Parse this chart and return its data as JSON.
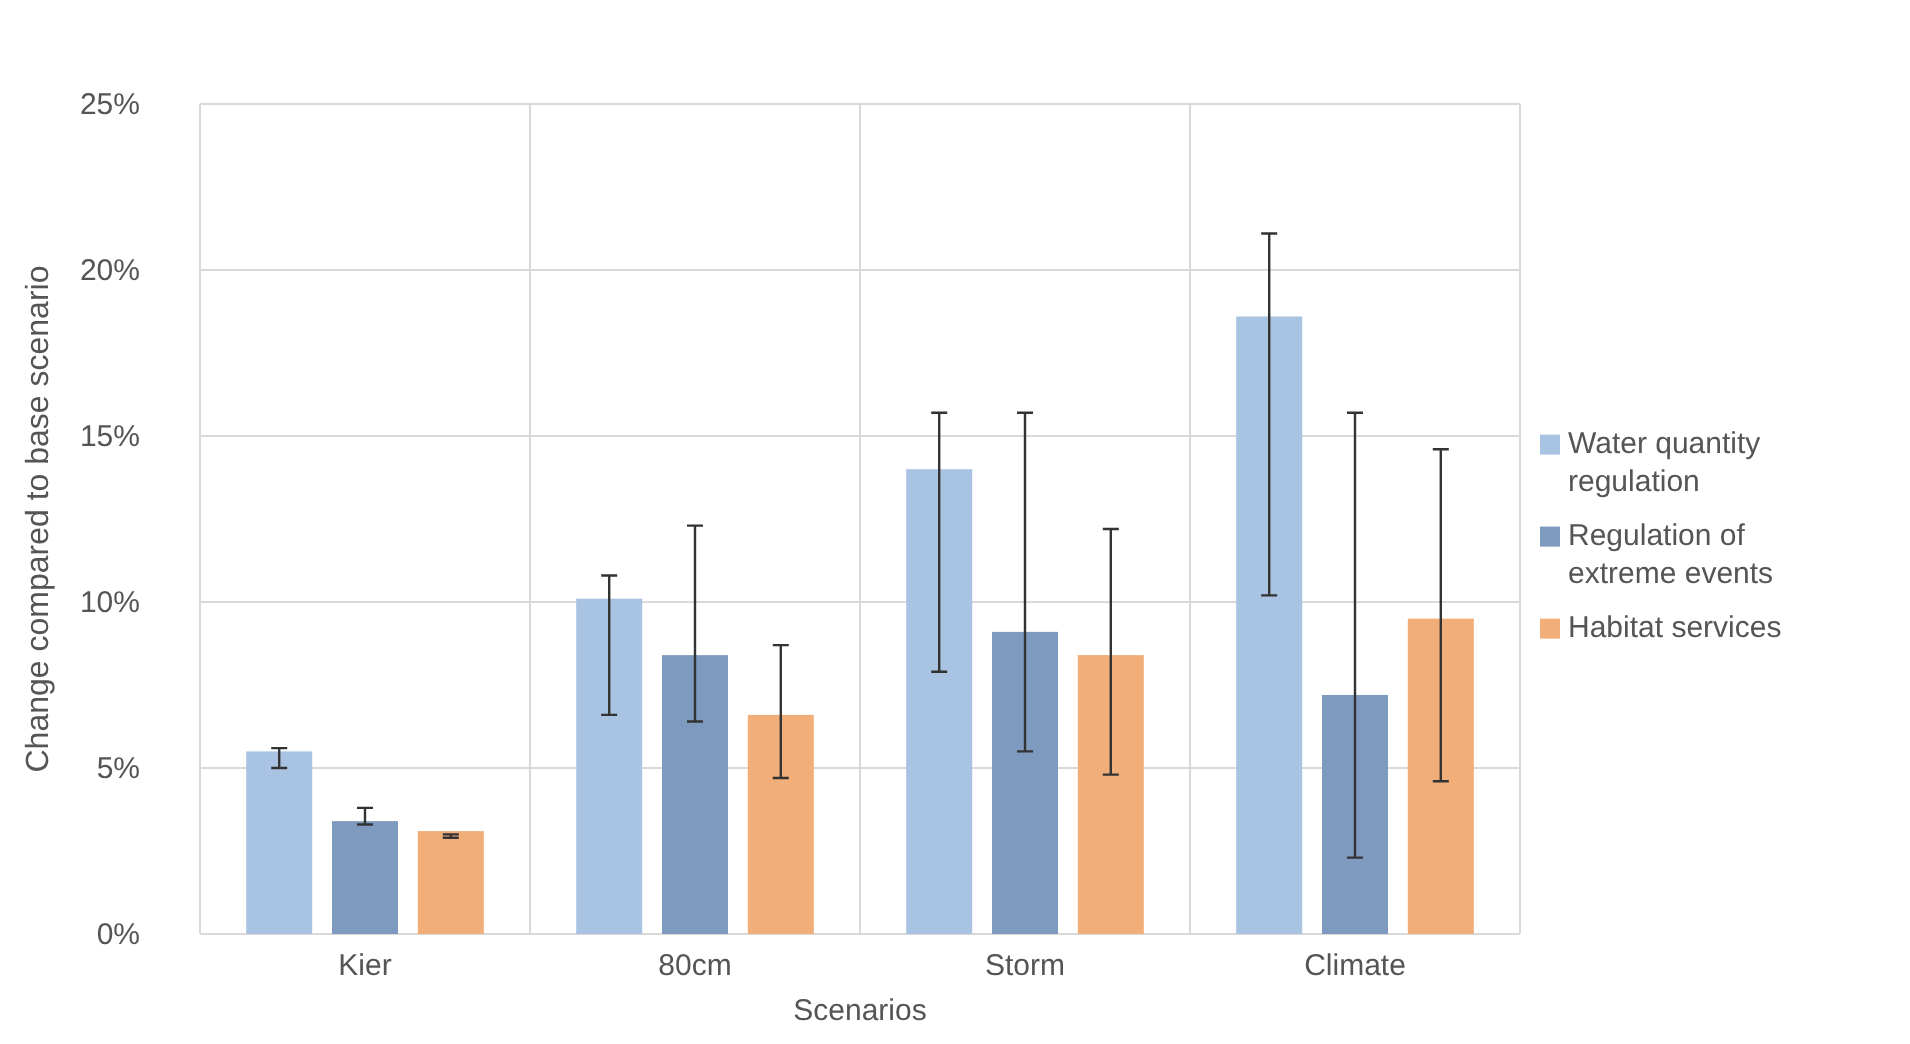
{
  "chart_data": {
    "type": "bar",
    "xlabel": "Scenarios",
    "ylabel": "Change compared to base scenario",
    "categories": [
      "Kier",
      "80cm",
      "Storm",
      "Climate"
    ],
    "series": [
      {
        "name": "Water quantity regulation",
        "color": "#a9c3e3",
        "values": [
          5.5,
          10.1,
          14.0,
          18.6
        ],
        "errors": [
          [
            5.0,
            5.6
          ],
          [
            6.6,
            10.8
          ],
          [
            7.9,
            15.7
          ],
          [
            10.2,
            21.1
          ]
        ]
      },
      {
        "name": "Regulation of extreme events",
        "color": "#7e9bbf",
        "values": [
          3.4,
          8.4,
          9.1,
          7.2
        ],
        "errors": [
          [
            3.3,
            3.8
          ],
          [
            6.4,
            12.3
          ],
          [
            5.5,
            15.7
          ],
          [
            2.3,
            15.7
          ]
        ]
      },
      {
        "name": "Habitat services",
        "color": "#f2ae78",
        "values": [
          3.1,
          6.6,
          8.4,
          9.5
        ],
        "errors": [
          [
            2.9,
            3.0
          ],
          [
            4.7,
            8.7
          ],
          [
            4.8,
            12.2
          ],
          [
            4.6,
            14.6
          ]
        ]
      }
    ],
    "ylim": [
      0,
      25
    ],
    "yticks": [
      {
        "value": 0,
        "label": "0%"
      },
      {
        "value": 5,
        "label": "5%"
      },
      {
        "value": 10,
        "label": "10%"
      },
      {
        "value": 15,
        "label": "15%"
      },
      {
        "value": 20,
        "label": "20%"
      },
      {
        "value": 25,
        "label": "25%"
      }
    ],
    "grid": true,
    "legend": "right"
  }
}
